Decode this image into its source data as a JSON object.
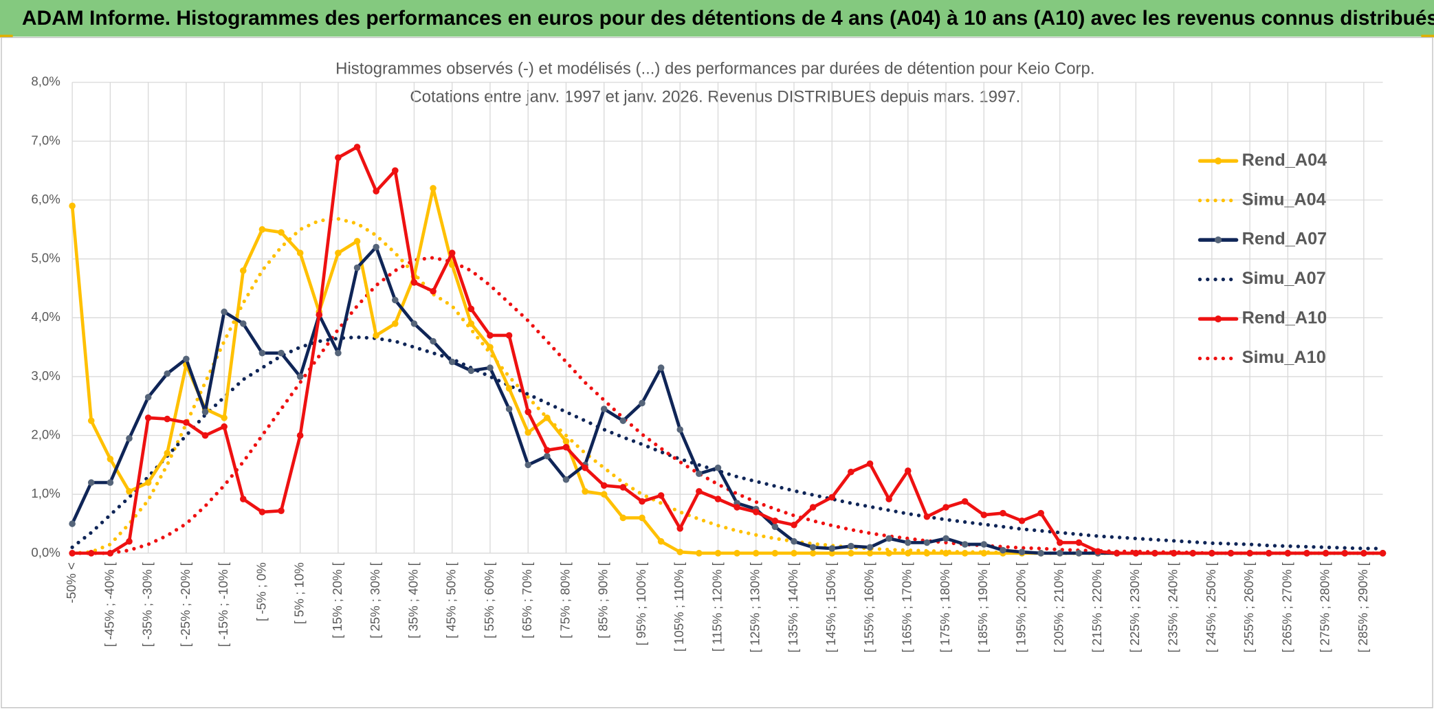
{
  "header": {
    "title": "ADAM Informe. Histogrammes des performances en euros pour des détentions de 4 ans (A04) à 10 ans (A10) avec les revenus connus distribués"
  },
  "chart_data": {
    "type": "line",
    "title": "Histogrammes observés (-) et modélisés (...) des performances par durées de détention pour Keio Corp.",
    "subtitle": "Cotations entre janv. 1997 et janv. 2026. Revenus DISTRIBUES depuis mars. 1997.",
    "categories": [
      "-50% <",
      null,
      "[ -45% ; -40% [",
      null,
      "[ -35% ; -30% [",
      null,
      "[ -25% ; -20% [",
      null,
      "[ -15% ; -10% [",
      null,
      "[ -5% ; 0%",
      null,
      "[ 5% ; 10%",
      null,
      "[ 15% ; 20% [",
      null,
      "[ 25% ; 30% [",
      null,
      "[ 35% ; 40% [",
      null,
      "[ 45% ; 50% [",
      null,
      "[ 55% ; 60% [",
      null,
      "[ 65% ; 70% [",
      null,
      "[ 75% ; 80% [",
      null,
      "[ 85% ; 90% [",
      null,
      "[ 95% ; 100% [",
      null,
      "[ 105% ; 110% [",
      null,
      "[ 115% ; 120% [",
      null,
      "[ 125% ; 130% [",
      null,
      "[ 135% ; 140% [",
      null,
      "[ 145% ; 150% [",
      null,
      "[ 155% ; 160% [",
      null,
      "[ 165% ; 170% [",
      null,
      "[ 175% ; 180% [",
      null,
      "[ 185% ; 190% [",
      null,
      "[ 195% ; 200% [",
      null,
      "[ 205% ; 210% [",
      null,
      "[ 215% ; 220% [",
      null,
      "[ 225% ; 230% [",
      null,
      "[ 235% ; 240% [",
      null,
      "[ 245% ; 250% [",
      null,
      "[ 255% ; 260% [",
      null,
      "[ 265% ; 270% [",
      null,
      "[ 275% ; 280% [",
      null,
      "[ 285% ; 290% [",
      null
    ],
    "ylim": [
      0,
      8
    ],
    "yticks": [
      {
        "value": 0,
        "label": "0,0%"
      },
      {
        "value": 1,
        "label": "1,0%"
      },
      {
        "value": 2,
        "label": "2,0%"
      },
      {
        "value": 3,
        "label": "3,0%"
      },
      {
        "value": 4,
        "label": "4,0%"
      },
      {
        "value": 5,
        "label": "5,0%"
      },
      {
        "value": 6,
        "label": "6,0%"
      },
      {
        "value": 7,
        "label": "7,0%"
      },
      {
        "value": 8,
        "label": "8,0%"
      }
    ],
    "grid": true,
    "legend": "right",
    "series": [
      {
        "name": "Rend_A04",
        "color": "#ffc000",
        "marker_color": "#ffc000",
        "style": "solid",
        "markers": true,
        "values": [
          5.9,
          2.25,
          1.6,
          1.05,
          1.2,
          1.7,
          3.2,
          2.45,
          2.3,
          4.8,
          5.5,
          5.45,
          5.1,
          4.1,
          5.1,
          5.3,
          3.7,
          3.9,
          4.7,
          6.2,
          4.9,
          3.9,
          3.5,
          2.8,
          2.05,
          2.3,
          1.9,
          1.05,
          1.0,
          0.6,
          0.6,
          0.2,
          0.02,
          0,
          0,
          0,
          0,
          0,
          0,
          0,
          0,
          0,
          0,
          0,
          0,
          0,
          0,
          0,
          0,
          0,
          0,
          0,
          0,
          0,
          0,
          0,
          0,
          0,
          0,
          0,
          0,
          0,
          0,
          0,
          0,
          0,
          0,
          0,
          0,
          0
        ]
      },
      {
        "name": "Simu_A04",
        "color": "#ffc000",
        "style": "dotted",
        "markers": false,
        "values": [
          0,
          0.02,
          0.15,
          0.5,
          0.9,
          1.5,
          2.2,
          2.9,
          3.6,
          4.25,
          4.8,
          5.2,
          5.5,
          5.65,
          5.68,
          5.6,
          5.4,
          5.1,
          4.75,
          4.4,
          4.2,
          3.8,
          3.4,
          3.0,
          2.65,
          2.3,
          2.0,
          1.7,
          1.45,
          1.2,
          1.0,
          0.85,
          0.7,
          0.58,
          0.47,
          0.38,
          0.31,
          0.25,
          0.2,
          0.16,
          0.13,
          0.1,
          0.08,
          0.06,
          0.05,
          0.04,
          0.03,
          0.02,
          0.02,
          0.01,
          0.01,
          0,
          0,
          0,
          0,
          0,
          0,
          0,
          0,
          0,
          0,
          0,
          0,
          0,
          0,
          0,
          0,
          0,
          0,
          0
        ]
      },
      {
        "name": "Rend_A07",
        "color": "#0f2557",
        "marker_color": "#56657a",
        "style": "solid",
        "markers": true,
        "values": [
          0.5,
          1.2,
          1.2,
          1.95,
          2.65,
          3.05,
          3.3,
          2.4,
          4.1,
          3.9,
          3.4,
          3.4,
          3.0,
          4.05,
          3.4,
          4.85,
          5.2,
          4.3,
          3.9,
          3.6,
          3.25,
          3.1,
          3.15,
          2.45,
          1.5,
          1.65,
          1.25,
          1.5,
          2.45,
          2.25,
          2.55,
          3.15,
          2.1,
          1.35,
          1.45,
          0.85,
          0.75,
          0.45,
          0.2,
          0.1,
          0.08,
          0.12,
          0.1,
          0.25,
          0.18,
          0.18,
          0.25,
          0.15,
          0.15,
          0.05,
          0.02,
          0,
          0,
          0,
          0,
          0,
          0,
          0,
          0,
          0,
          0,
          0,
          0,
          0,
          0,
          0,
          0,
          0,
          0,
          0
        ]
      },
      {
        "name": "Simu_A07",
        "color": "#0f2557",
        "style": "dotted",
        "markers": false,
        "values": [
          0.1,
          0.35,
          0.65,
          0.95,
          1.3,
          1.65,
          2.0,
          2.35,
          2.65,
          2.95,
          3.15,
          3.35,
          3.5,
          3.6,
          3.65,
          3.67,
          3.65,
          3.6,
          3.5,
          3.4,
          3.3,
          3.15,
          3.0,
          2.85,
          2.7,
          2.55,
          2.4,
          2.25,
          2.1,
          1.97,
          1.85,
          1.72,
          1.6,
          1.5,
          1.4,
          1.3,
          1.22,
          1.14,
          1.06,
          0.99,
          0.92,
          0.85,
          0.79,
          0.73,
          0.67,
          0.62,
          0.57,
          0.53,
          0.49,
          0.45,
          0.41,
          0.38,
          0.35,
          0.32,
          0.29,
          0.27,
          0.25,
          0.23,
          0.21,
          0.19,
          0.17,
          0.16,
          0.15,
          0.13,
          0.12,
          0.11,
          0.1,
          0.09,
          0.08,
          0.08
        ]
      },
      {
        "name": "Rend_A10",
        "color": "#ee1111",
        "marker_color": "#ee1111",
        "style": "solid",
        "markers": true,
        "values": [
          0,
          0,
          0,
          0.2,
          2.3,
          2.28,
          2.22,
          2.0,
          2.15,
          0.92,
          0.7,
          0.72,
          2.0,
          4.05,
          6.72,
          6.9,
          6.15,
          6.5,
          4.6,
          4.45,
          5.1,
          4.15,
          3.7,
          3.7,
          2.4,
          1.75,
          1.8,
          1.45,
          1.15,
          1.12,
          0.88,
          0.98,
          0.42,
          1.05,
          0.92,
          0.78,
          0.7,
          0.55,
          0.48,
          0.78,
          0.95,
          1.38,
          1.52,
          0.92,
          1.4,
          0.62,
          0.78,
          0.88,
          0.65,
          0.68,
          0.55,
          0.68,
          0.18,
          0.18,
          0.03,
          0,
          0,
          0,
          0,
          0,
          0,
          0,
          0,
          0,
          0,
          0,
          0,
          0,
          0,
          0
        ]
      },
      {
        "name": "Simu_A10",
        "color": "#ee1111",
        "style": "dotted",
        "markers": false,
        "values": [
          0,
          0,
          0,
          0.05,
          0.15,
          0.3,
          0.5,
          0.8,
          1.15,
          1.55,
          2.0,
          2.45,
          2.9,
          3.35,
          3.8,
          4.2,
          4.55,
          4.8,
          4.98,
          5.02,
          4.95,
          4.8,
          4.55,
          4.25,
          3.95,
          3.6,
          3.25,
          2.9,
          2.6,
          2.3,
          2.02,
          1.78,
          1.55,
          1.35,
          1.17,
          1.01,
          0.87,
          0.75,
          0.64,
          0.55,
          0.47,
          0.4,
          0.34,
          0.29,
          0.25,
          0.21,
          0.18,
          0.15,
          0.13,
          0.11,
          0.09,
          0.08,
          0.06,
          0.05,
          0.04,
          0.03,
          0.03,
          0.02,
          0.02,
          0.01,
          0,
          0,
          0,
          0,
          0,
          0,
          0,
          0,
          0,
          0
        ]
      }
    ]
  }
}
